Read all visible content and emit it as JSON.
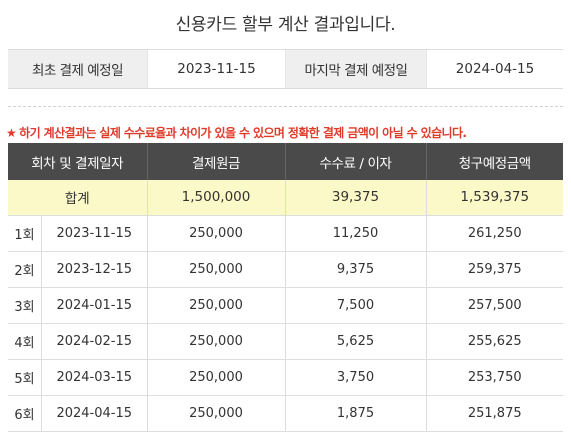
{
  "title": "신용카드 할부 계산 결과입니다.",
  "dates": {
    "first_label": "최초 결제 예정일",
    "first_value": "2023-11-15",
    "last_label": "마지막 결제 예정일",
    "last_value": "2024-04-15"
  },
  "notice": {
    "star": "★",
    "text": "하기 계산결과는 실제 수수료율과 차이가 있을 수 있으며 정확한 결제 금액이 아닐 수 있습니다.",
    "color": "#e03b2a"
  },
  "table": {
    "headers": [
      "회차 및 결제일자",
      "결제원금",
      "수수료 / 이자",
      "청구예정금액"
    ],
    "total": {
      "label": "합계",
      "principal": "1,500,000",
      "fee": "39,375",
      "billed": "1,539,375"
    },
    "rows": [
      {
        "no": "1회",
        "date": "2023-11-15",
        "principal": "250,000",
        "fee": "11,250",
        "billed": "261,250"
      },
      {
        "no": "2회",
        "date": "2023-12-15",
        "principal": "250,000",
        "fee": "9,375",
        "billed": "259,375"
      },
      {
        "no": "3회",
        "date": "2024-01-15",
        "principal": "250,000",
        "fee": "7,500",
        "billed": "257,500"
      },
      {
        "no": "4회",
        "date": "2024-02-15",
        "principal": "250,000",
        "fee": "5,625",
        "billed": "255,625"
      },
      {
        "no": "5회",
        "date": "2024-03-15",
        "principal": "250,000",
        "fee": "3,750",
        "billed": "253,750"
      },
      {
        "no": "6회",
        "date": "2024-04-15",
        "principal": "250,000",
        "fee": "1,875",
        "billed": "251,875"
      }
    ]
  },
  "colors": {
    "header_bg": "#4a4a4a",
    "total_bg": "#fcf9c8",
    "label_bg": "#efefef"
  }
}
